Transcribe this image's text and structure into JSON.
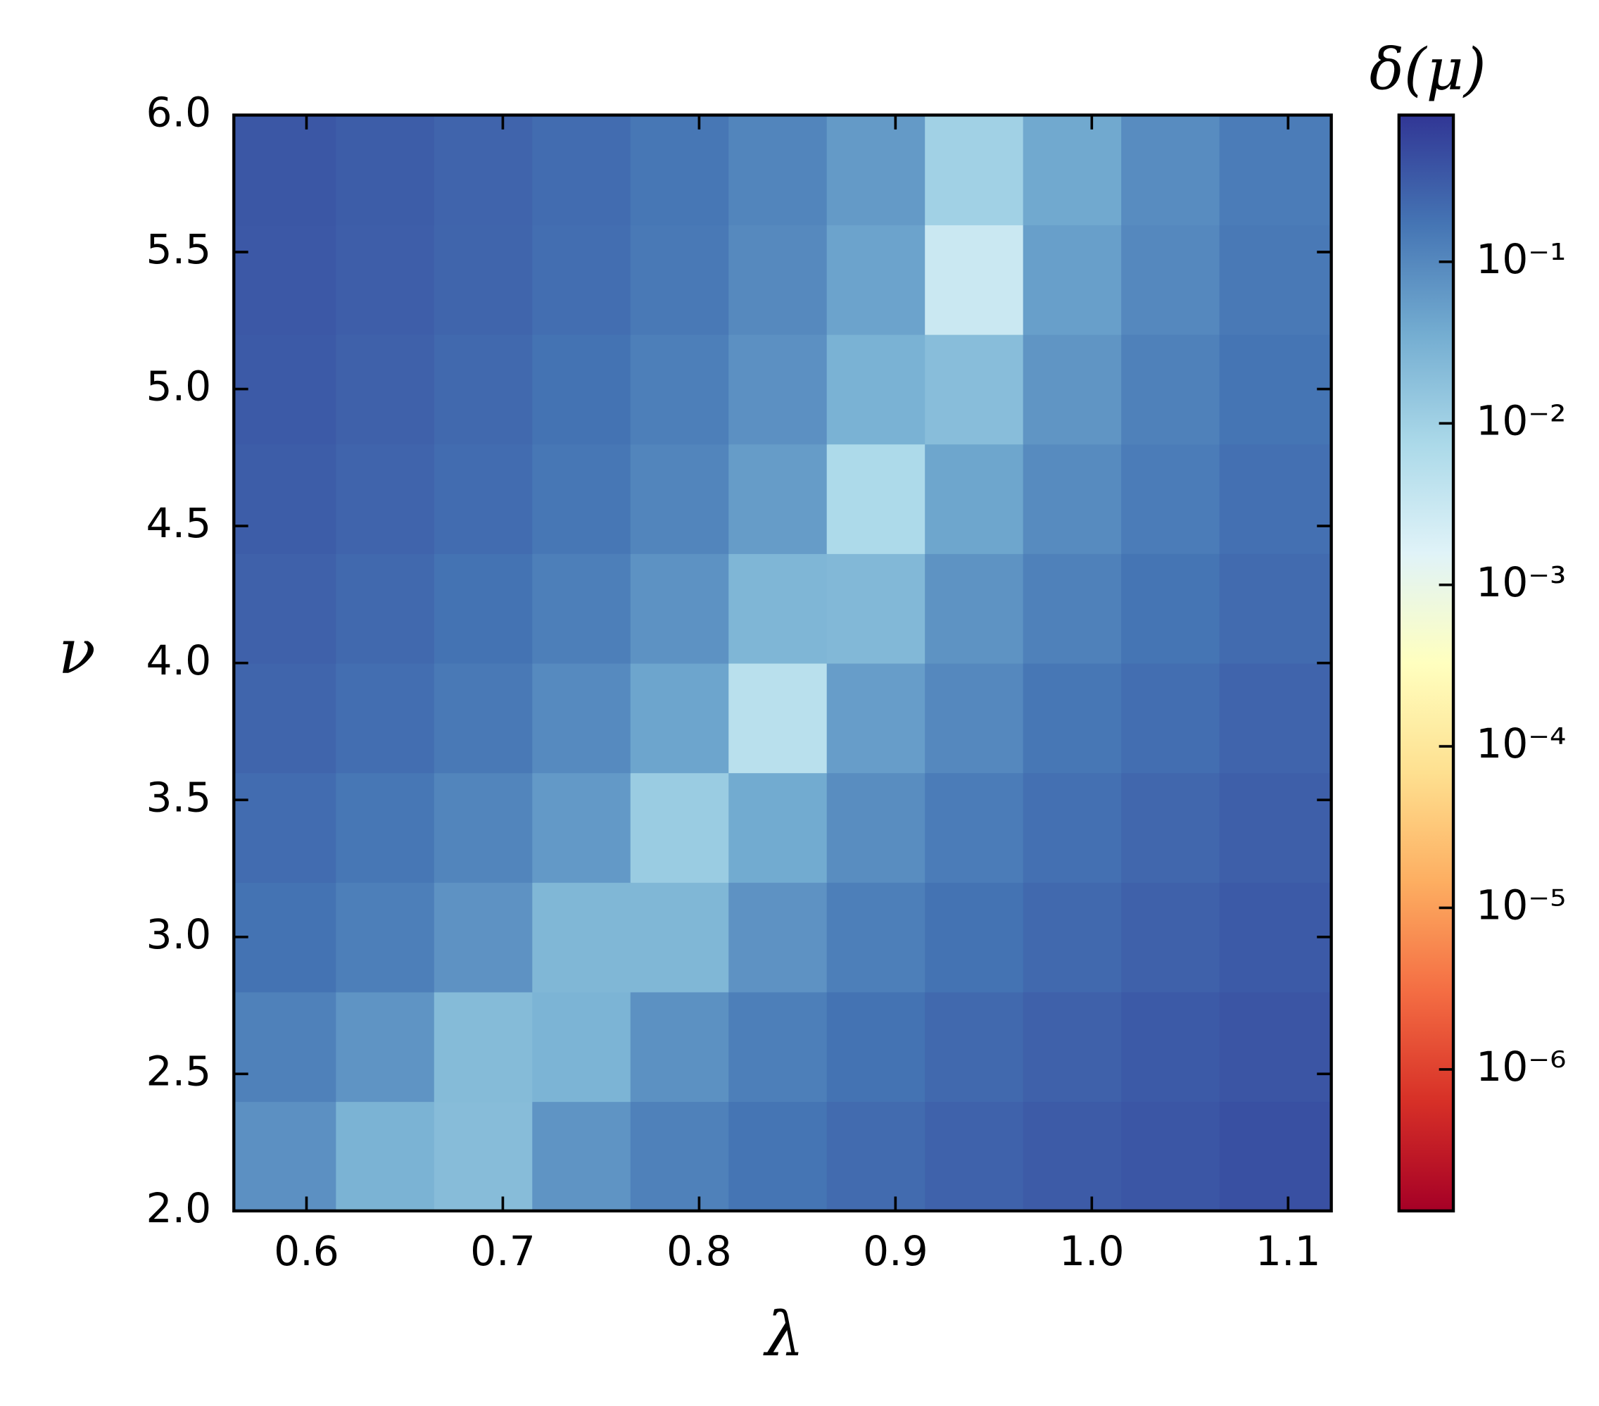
{
  "chart_data": {
    "type": "heatmap",
    "xlabel": "λ",
    "ylabel": "ν",
    "colorbar_label": "δ(μ)",
    "xlim": [
      0.563,
      1.122
    ],
    "ylim": [
      2,
      6
    ],
    "xticks": [
      0.6,
      0.7,
      0.8,
      0.9,
      {
        "value": 1,
        "label": "1.0"
      },
      1.1
    ],
    "yticks": [
      {
        "value": 2,
        "label": "2.0"
      },
      2.5,
      {
        "value": 3,
        "label": "3.0"
      },
      3.5,
      {
        "value": 4,
        "label": "4.0"
      },
      4.5,
      {
        "value": 5,
        "label": "5.0"
      },
      5.5,
      {
        "value": 6,
        "label": "6.0"
      }
    ],
    "clim": [
      1.33e-07,
      0.81
    ],
    "color_scale": "log",
    "cticks": [
      {
        "value": 1e-06,
        "label": "10⁻⁶"
      },
      {
        "value": 1e-05,
        "label": "10⁻⁵"
      },
      {
        "value": 0.0001,
        "label": "10⁻⁴"
      },
      {
        "value": 0.001,
        "label": "10⁻³"
      },
      {
        "value": 0.01,
        "label": "10⁻²"
      },
      {
        "value": 0.1,
        "label": "10⁻¹"
      }
    ],
    "colormap": [
      "#a50026",
      "#d73027",
      "#f46d43",
      "#fdae61",
      "#fee090",
      "#ffffbf",
      "#e0f3f8",
      "#abd9e9",
      "#74add1",
      "#4575b4",
      "#313695"
    ],
    "x": [
      0.59,
      0.64,
      0.69,
      0.74,
      0.79,
      0.84,
      0.89,
      0.94,
      0.99,
      1.04,
      1.09
    ],
    "y": [
      2.2,
      2.6,
      3.0,
      3.4,
      3.8,
      4.2,
      4.6,
      5.0,
      5.4,
      5.8
    ],
    "z": [
      [
        0.079,
        0.029,
        0.021,
        0.071,
        0.12,
        0.17,
        0.22,
        0.27,
        0.32,
        0.37,
        0.42
      ],
      [
        0.12,
        0.072,
        0.022,
        0.028,
        0.078,
        0.13,
        0.18,
        0.23,
        0.28,
        0.33,
        0.38
      ],
      [
        0.18,
        0.13,
        0.075,
        0.025,
        0.025,
        0.075,
        0.13,
        0.18,
        0.23,
        0.28,
        0.33
      ],
      [
        0.21,
        0.16,
        0.11,
        0.062,
        0.012,
        0.038,
        0.088,
        0.14,
        0.19,
        0.24,
        0.29
      ],
      [
        0.25,
        0.2,
        0.15,
        0.095,
        0.045,
        0.005,
        0.055,
        0.1,
        0.16,
        0.2,
        0.26
      ],
      [
        0.28,
        0.23,
        0.18,
        0.13,
        0.076,
        0.026,
        0.024,
        0.074,
        0.12,
        0.17,
        0.22
      ],
      [
        0.31,
        0.26,
        0.21,
        0.16,
        0.11,
        0.057,
        0.007,
        0.043,
        0.093,
        0.14,
        0.19
      ],
      [
        0.33,
        0.28,
        0.23,
        0.18,
        0.13,
        0.08,
        0.03,
        0.02,
        0.07,
        0.12,
        0.17
      ],
      [
        0.35,
        0.3,
        0.25,
        0.2,
        0.15,
        0.097,
        0.047,
        0.003,
        0.053,
        0.1,
        0.15
      ],
      [
        0.36,
        0.31,
        0.26,
        0.21,
        0.16,
        0.11,
        0.06,
        0.01,
        0.04,
        0.09,
        0.14
      ]
    ]
  }
}
